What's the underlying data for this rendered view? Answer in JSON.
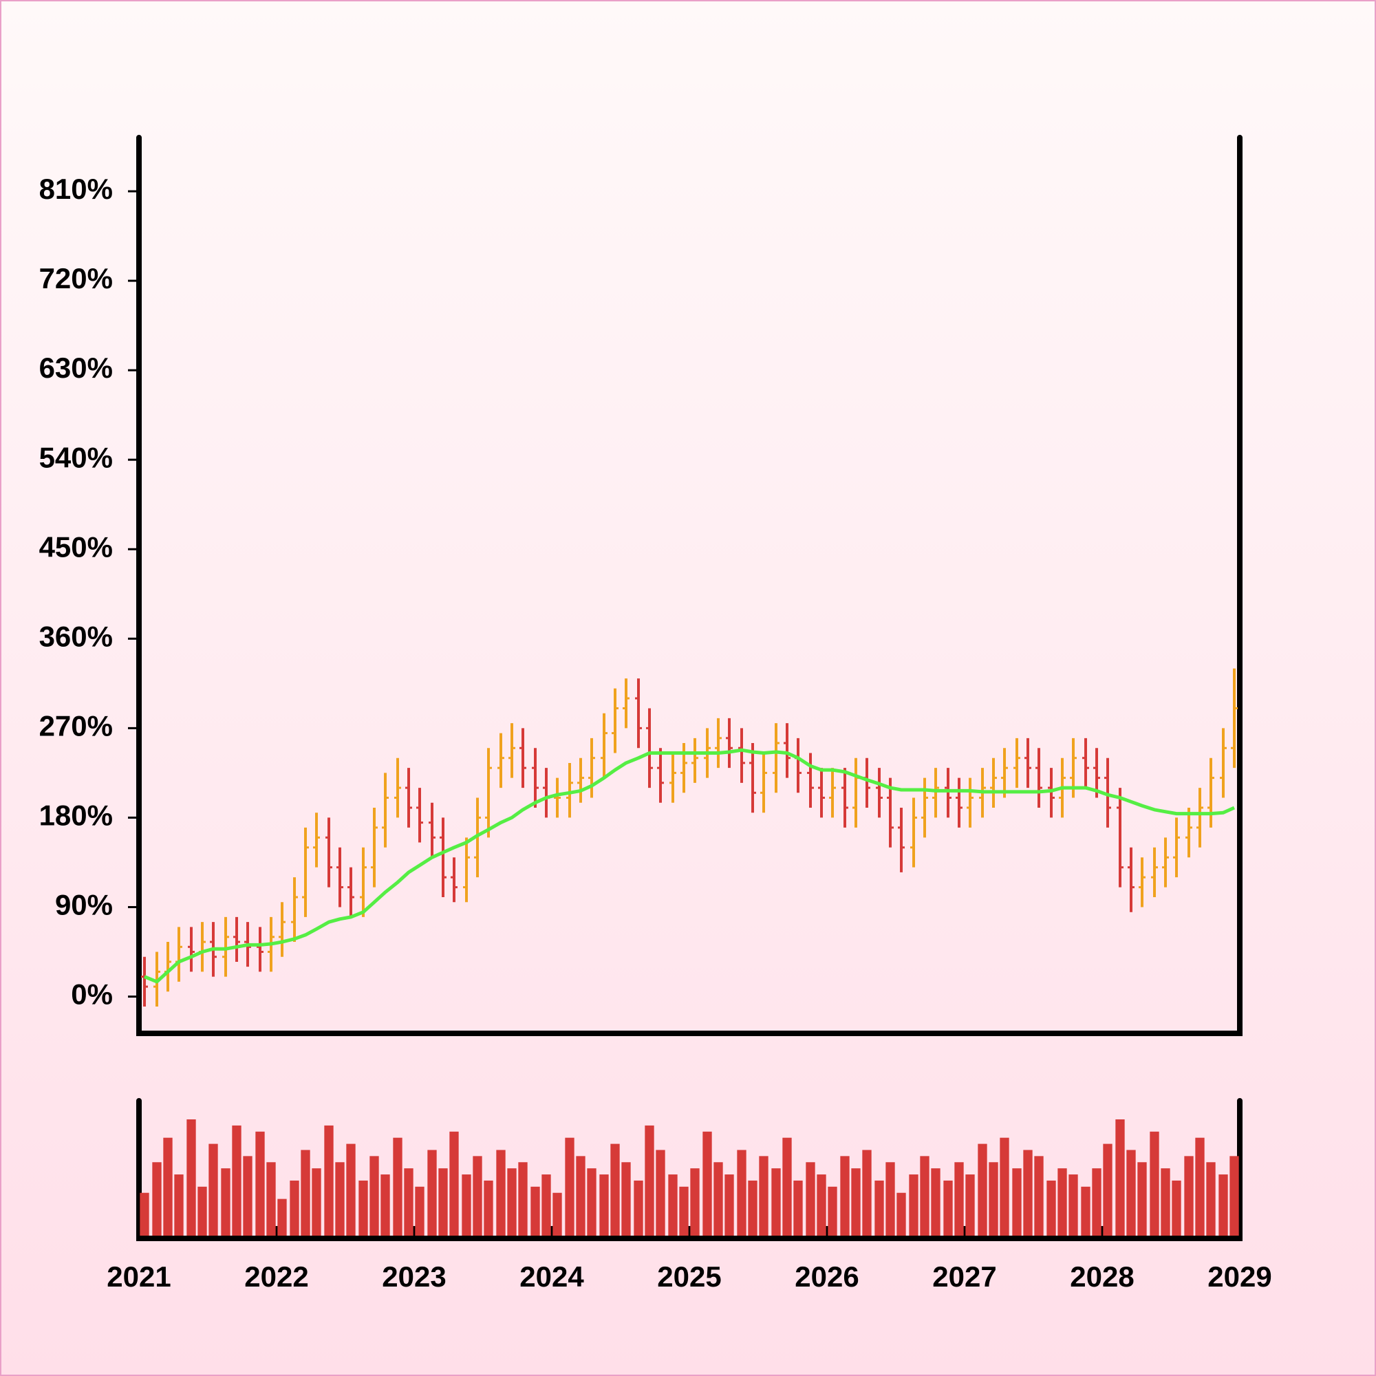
{
  "chart_data": {
    "type": "ohlc",
    "x": [
      2021.04,
      2021.13,
      2021.21,
      2021.29,
      2021.38,
      2021.46,
      2021.54,
      2021.63,
      2021.71,
      2021.79,
      2021.88,
      2021.96,
      2022.04,
      2022.13,
      2022.21,
      2022.29,
      2022.38,
      2022.46,
      2022.54,
      2022.63,
      2022.71,
      2022.79,
      2022.88,
      2022.96,
      2023.04,
      2023.13,
      2023.21,
      2023.29,
      2023.38,
      2023.46,
      2023.54,
      2023.63,
      2023.71,
      2023.79,
      2023.88,
      2023.96,
      2024.04,
      2024.13,
      2024.21,
      2024.29,
      2024.38,
      2024.46,
      2024.54,
      2024.63,
      2024.71,
      2024.79,
      2024.88,
      2024.96,
      2025.04,
      2025.13,
      2025.21,
      2025.29,
      2025.38,
      2025.46,
      2025.54,
      2025.63,
      2025.71,
      2025.79,
      2025.88,
      2025.96,
      2026.04,
      2026.13,
      2026.21,
      2026.29,
      2026.38,
      2026.46,
      2026.54,
      2026.63,
      2026.71,
      2026.79,
      2026.88,
      2026.96,
      2027.04,
      2027.13,
      2027.21,
      2027.29,
      2027.38,
      2027.46,
      2027.54,
      2027.63,
      2027.71,
      2027.79,
      2027.88,
      2027.96,
      2028.04,
      2028.13,
      2028.21,
      2028.29,
      2028.38,
      2028.46,
      2028.54,
      2028.63,
      2028.71,
      2028.79,
      2028.88,
      2028.96
    ],
    "open": [
      20,
      10,
      25,
      35,
      50,
      45,
      55,
      40,
      60,
      55,
      50,
      45,
      60,
      75,
      100,
      150,
      160,
      130,
      110,
      100,
      130,
      170,
      200,
      210,
      190,
      175,
      160,
      120,
      110,
      140,
      180,
      230,
      240,
      250,
      230,
      210,
      200,
      200,
      215,
      220,
      240,
      265,
      290,
      300,
      270,
      230,
      215,
      225,
      235,
      240,
      250,
      260,
      250,
      235,
      205,
      225,
      255,
      240,
      225,
      210,
      200,
      210,
      190,
      220,
      210,
      200,
      170,
      150,
      180,
      200,
      210,
      200,
      190,
      200,
      210,
      220,
      230,
      240,
      230,
      210,
      200,
      220,
      240,
      230,
      220,
      190,
      130,
      110,
      120,
      130,
      140,
      160,
      170,
      190,
      220,
      250
    ],
    "high": [
      40,
      45,
      55,
      70,
      70,
      75,
      75,
      80,
      80,
      75,
      70,
      80,
      95,
      120,
      170,
      185,
      180,
      150,
      130,
      150,
      190,
      225,
      240,
      230,
      210,
      195,
      180,
      140,
      160,
      200,
      250,
      265,
      275,
      270,
      250,
      230,
      220,
      235,
      240,
      260,
      285,
      310,
      320,
      320,
      290,
      250,
      245,
      255,
      260,
      270,
      280,
      280,
      270,
      255,
      245,
      275,
      275,
      260,
      245,
      230,
      230,
      230,
      240,
      240,
      230,
      220,
      190,
      200,
      220,
      230,
      230,
      220,
      220,
      230,
      240,
      250,
      260,
      260,
      250,
      230,
      240,
      260,
      260,
      250,
      240,
      210,
      150,
      140,
      150,
      160,
      180,
      190,
      210,
      240,
      270,
      330
    ],
    "low": [
      -10,
      -10,
      5,
      15,
      25,
      25,
      20,
      20,
      35,
      30,
      25,
      25,
      40,
      55,
      80,
      130,
      110,
      90,
      80,
      80,
      110,
      150,
      180,
      170,
      155,
      140,
      100,
      95,
      95,
      120,
      160,
      210,
      220,
      210,
      190,
      180,
      180,
      180,
      195,
      200,
      220,
      245,
      270,
      250,
      210,
      195,
      195,
      205,
      215,
      220,
      230,
      230,
      215,
      185,
      185,
      205,
      220,
      205,
      190,
      180,
      180,
      170,
      170,
      190,
      180,
      150,
      125,
      130,
      160,
      180,
      180,
      170,
      170,
      180,
      190,
      200,
      210,
      210,
      190,
      180,
      180,
      200,
      210,
      200,
      170,
      110,
      85,
      90,
      100,
      110,
      120,
      140,
      150,
      170,
      200,
      230
    ],
    "close": [
      10,
      25,
      35,
      50,
      45,
      55,
      40,
      60,
      55,
      50,
      45,
      60,
      75,
      100,
      150,
      160,
      130,
      110,
      100,
      130,
      170,
      200,
      210,
      190,
      175,
      160,
      120,
      110,
      140,
      180,
      230,
      240,
      250,
      230,
      210,
      200,
      200,
      215,
      220,
      240,
      265,
      290,
      300,
      270,
      230,
      215,
      225,
      235,
      240,
      250,
      260,
      250,
      235,
      205,
      225,
      255,
      240,
      225,
      210,
      200,
      210,
      190,
      220,
      210,
      200,
      170,
      150,
      180,
      200,
      210,
      200,
      190,
      200,
      210,
      220,
      230,
      240,
      230,
      210,
      200,
      220,
      240,
      230,
      220,
      190,
      130,
      110,
      120,
      130,
      140,
      160,
      170,
      190,
      220,
      250,
      290
    ],
    "moving_average": [
      20,
      15,
      25,
      35,
      40,
      45,
      48,
      48,
      50,
      52,
      52,
      53,
      55,
      58,
      62,
      68,
      75,
      78,
      80,
      85,
      95,
      105,
      115,
      125,
      132,
      140,
      145,
      150,
      155,
      162,
      168,
      175,
      180,
      188,
      195,
      200,
      203,
      205,
      207,
      212,
      220,
      228,
      235,
      240,
      245,
      245,
      245,
      245,
      245,
      245,
      245,
      246,
      248,
      246,
      245,
      246,
      245,
      240,
      232,
      228,
      228,
      226,
      222,
      218,
      214,
      210,
      208,
      208,
      208,
      207,
      207,
      207,
      207,
      206,
      206,
      206,
      206,
      206,
      206,
      207,
      210,
      210,
      210,
      207,
      203,
      200,
      196,
      192,
      188,
      186,
      184,
      184,
      184,
      184,
      185,
      190
    ],
    "volume": [
      35,
      60,
      80,
      50,
      95,
      40,
      75,
      55,
      90,
      65,
      85,
      60,
      30,
      45,
      70,
      55,
      90,
      60,
      75,
      45,
      65,
      50,
      80,
      55,
      40,
      70,
      55,
      85,
      50,
      65,
      45,
      70,
      55,
      60,
      40,
      50,
      35,
      80,
      65,
      55,
      50,
      75,
      60,
      45,
      90,
      70,
      50,
      40,
      55,
      85,
      60,
      50,
      70,
      45,
      65,
      55,
      80,
      45,
      60,
      50,
      40,
      65,
      55,
      70,
      45,
      60,
      35,
      50,
      65,
      55,
      45,
      60,
      50,
      75,
      60,
      80,
      55,
      70,
      65,
      45,
      55,
      50,
      40,
      55,
      75,
      95,
      70,
      60,
      85,
      55,
      45,
      65,
      80,
      60,
      50,
      65
    ],
    "xlim": [
      2021,
      2029
    ],
    "xticks": [
      2021,
      2022,
      2023,
      2024,
      2025,
      2026,
      2027,
      2028,
      2029
    ],
    "ylim": [
      -37,
      864
    ],
    "yticks": [
      {
        "value": 0,
        "label": "0%"
      },
      {
        "value": 90,
        "label": "90%"
      },
      {
        "value": 180,
        "label": "180%"
      },
      {
        "value": 270,
        "label": "270%"
      },
      {
        "value": 360,
        "label": "360%"
      },
      {
        "value": 450,
        "label": "450%"
      },
      {
        "value": 540,
        "label": "540%"
      },
      {
        "value": 630,
        "label": "630%"
      },
      {
        "value": 720,
        "label": "720%"
      },
      {
        "value": 810,
        "label": "810%"
      }
    ],
    "up_color": "#f0a21e",
    "down_color": "#d63a38",
    "ma_color": "#55ee44",
    "volume_color": "#d63a38"
  }
}
